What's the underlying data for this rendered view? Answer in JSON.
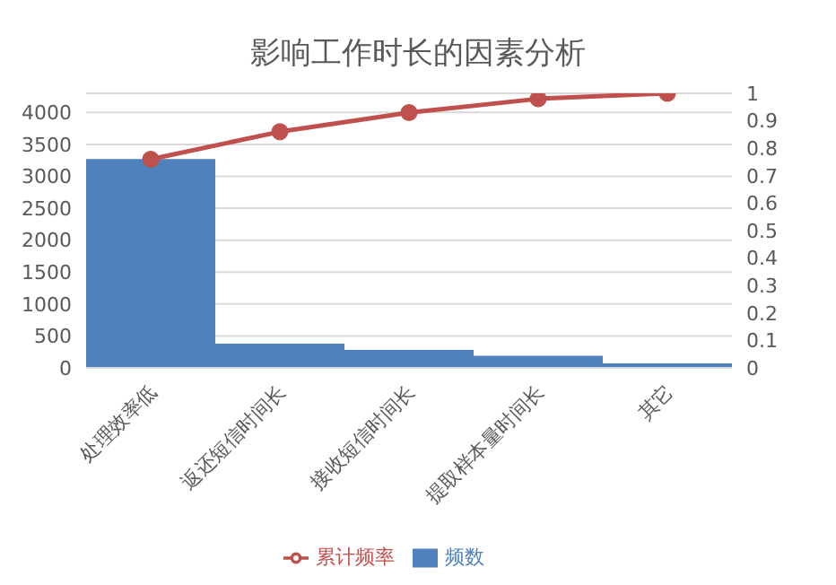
{
  "chart_data": {
    "type": "bar",
    "title": "影响工作时长的因素分析",
    "categories": [
      "处理效率低",
      "返还短信时间长",
      "接收短信时间长",
      "提取样本量时间长",
      "其它"
    ],
    "series": [
      {
        "name": "频数",
        "color": "#4f81bd",
        "values": [
          3270,
          380,
          280,
          190,
          70
        ]
      },
      {
        "name": "累计频率",
        "type": "line",
        "axis": "y2",
        "color": "#c0504d",
        "values": [
          0.76,
          0.86,
          0.93,
          0.98,
          1
        ]
      }
    ],
    "ylim": [
      0,
      4300
    ],
    "yticks": [
      0,
      500,
      1000,
      1500,
      2000,
      2500,
      3000,
      3500,
      4000
    ],
    "y2lim": [
      0,
      1
    ],
    "y2ticks": [
      0,
      0.1,
      0.2,
      0.3,
      0.4,
      0.5,
      0.6,
      0.7,
      0.8,
      0.9,
      1
    ],
    "grid": "y",
    "legend": "bottom",
    "marker": "circle",
    "line_style": "solid"
  }
}
